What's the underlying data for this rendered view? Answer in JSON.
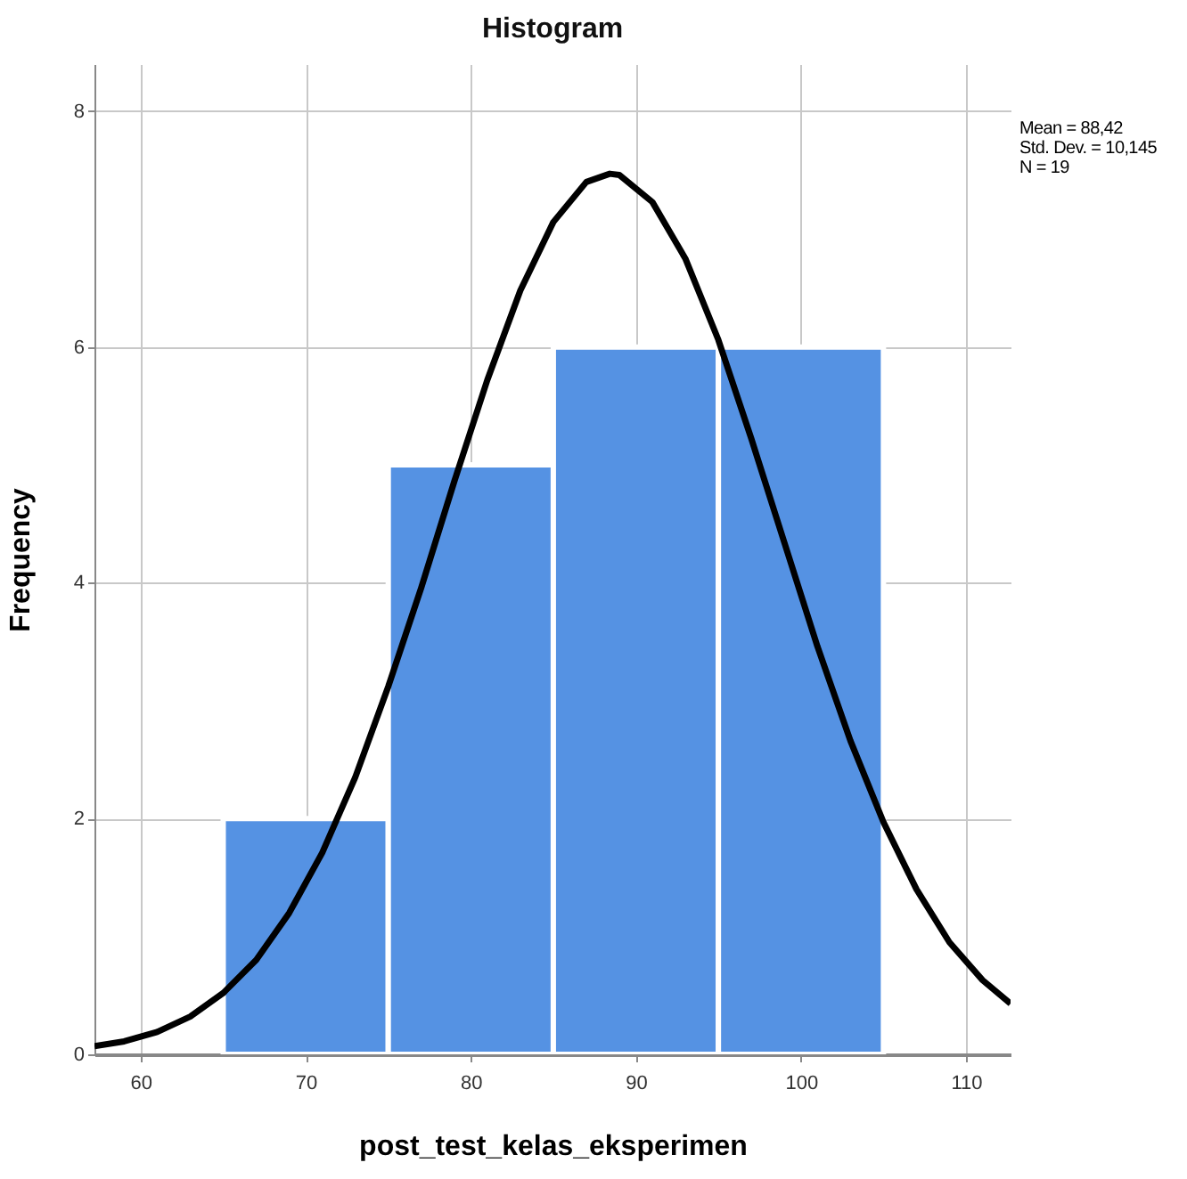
{
  "chart_data": {
    "type": "histogram",
    "title": "Histogram",
    "xlabel": "post_test_kelas_eksperimen",
    "ylabel": "Frequency",
    "bins": [
      65,
      75,
      85,
      95,
      105
    ],
    "values": [
      2,
      5,
      6,
      6
    ],
    "color": "#5592e3",
    "series": [
      {
        "type": "line",
        "color": "#000000",
        "x": [
          57.2,
          59,
          61,
          63,
          65,
          67,
          69,
          71,
          73,
          75,
          77,
          79,
          81,
          83,
          85,
          87,
          88.42,
          89,
          91,
          93,
          95,
          97,
          99,
          101,
          103,
          105,
          107,
          109,
          111,
          112.7
        ],
        "values": [
          0.07,
          0.11,
          0.19,
          0.32,
          0.52,
          0.8,
          1.2,
          1.71,
          2.35,
          3.12,
          3.96,
          4.86,
          5.72,
          6.48,
          7.06,
          7.4,
          7.47,
          7.46,
          7.23,
          6.75,
          6.06,
          5.22,
          4.34,
          3.46,
          2.66,
          1.97,
          1.4,
          0.95,
          0.63,
          0.43
        ]
      }
    ],
    "xlim": [
      57.2,
      112.7
    ],
    "xticks": [
      60,
      70,
      80,
      90,
      100,
      110
    ],
    "ylim": [
      0,
      8.4
    ],
    "yticks": [
      0,
      2,
      4,
      6,
      8
    ],
    "grid": true,
    "annotations": [
      "Mean = 88,42",
      "Std. Dev. = 10,145",
      "N = 19"
    ]
  }
}
